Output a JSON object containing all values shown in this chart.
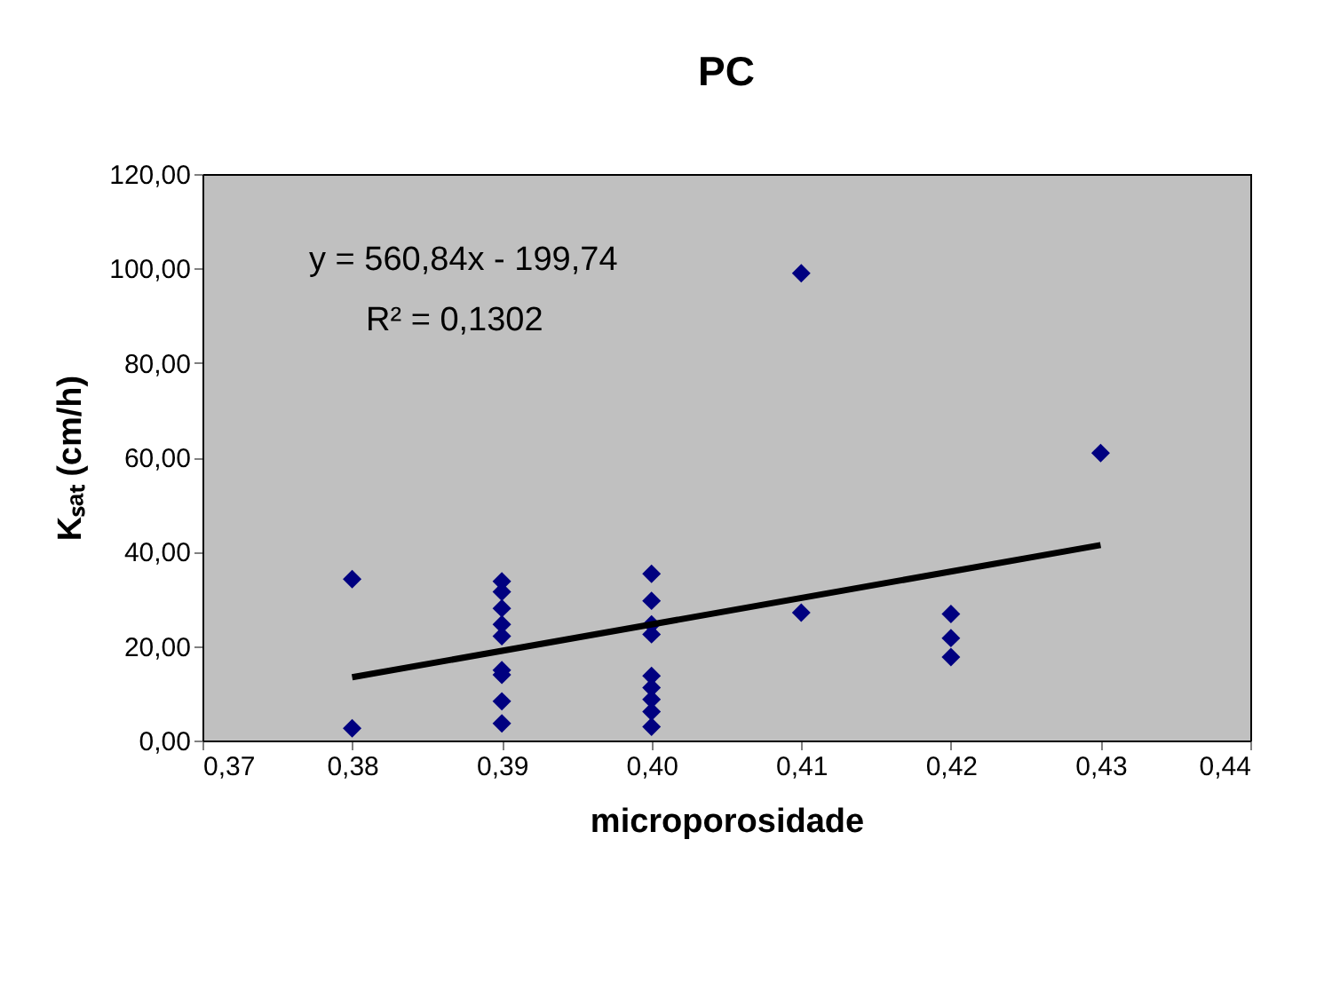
{
  "chart_data": {
    "type": "scatter",
    "title": "PC",
    "xlabel": "microporosidade",
    "ylabel": "Kₛₐₜ (cm/h)",
    "annotations": [
      "y = 560,84x - 199,74",
      "R² = 0,1302"
    ],
    "grid": false,
    "xlim": [
      0.37,
      0.44
    ],
    "xticks": [
      {
        "value": 0.37,
        "label": "0,37"
      },
      {
        "value": 0.38,
        "label": "0,38"
      },
      {
        "value": 0.39,
        "label": "0,39"
      },
      {
        "value": 0.4,
        "label": "0,40"
      },
      {
        "value": 0.41,
        "label": "0,41"
      },
      {
        "value": 0.42,
        "label": "0,42"
      },
      {
        "value": 0.43,
        "label": "0,43"
      },
      {
        "value": 0.44,
        "label": "0,44"
      }
    ],
    "ylim": [
      0,
      120
    ],
    "yticks": [
      {
        "value": 0,
        "label": "0,00"
      },
      {
        "value": 20,
        "label": "20,00"
      },
      {
        "value": 40,
        "label": "40,00"
      },
      {
        "value": 60,
        "label": "60,00"
      },
      {
        "value": 80,
        "label": "80,00"
      },
      {
        "value": 100,
        "label": "100,00"
      },
      {
        "value": 120,
        "label": "120,00"
      }
    ],
    "series": [
      {
        "marker": "diamond",
        "color": "#000080",
        "x": [
          0.38,
          0.38,
          0.39,
          0.39,
          0.39,
          0.39,
          0.39,
          0.39,
          0.39,
          0.39,
          0.39,
          0.4,
          0.4,
          0.4,
          0.4,
          0.4,
          0.4,
          0.4,
          0.4,
          0.4,
          0.41,
          0.41,
          0.42,
          0.42,
          0.42,
          0.43
        ],
        "values": [
          34.2,
          2.6,
          33.7,
          31.5,
          28,
          24.6,
          22.1,
          14.9,
          13.9,
          8.3,
          3.6,
          35.3,
          29.6,
          24.6,
          22.5,
          13.7,
          11.2,
          8.7,
          6.1,
          2.9,
          99,
          27.1,
          26.8,
          21.7,
          17.7,
          60.9
        ]
      },
      {
        "type": "line",
        "marker": "none",
        "color": "#000000",
        "x": [
          0.38,
          0.43
        ],
        "values": [
          13.4,
          41.4
        ]
      }
    ]
  }
}
